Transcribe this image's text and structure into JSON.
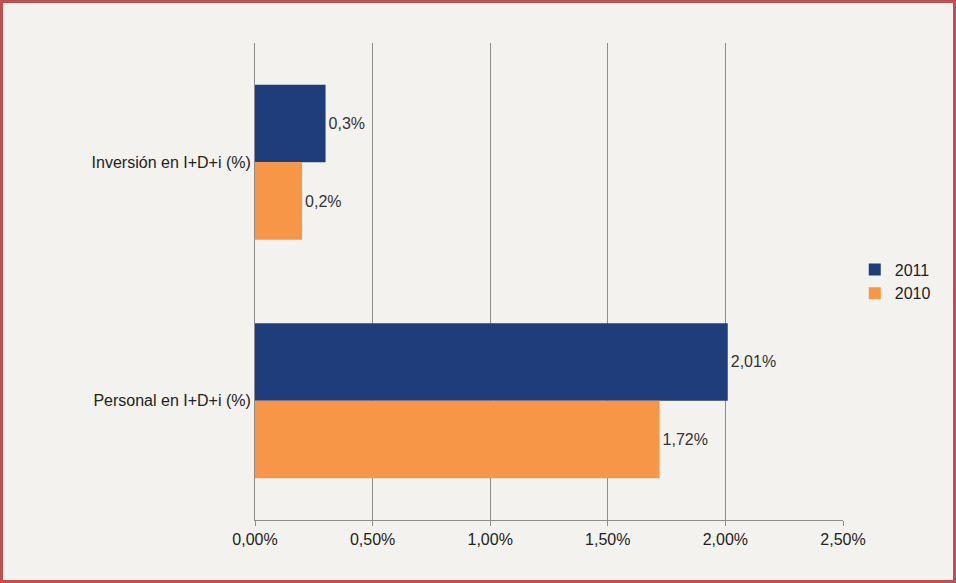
{
  "chart_data": {
    "type": "bar",
    "orientation": "horizontal",
    "categories": [
      "Inversión en I+D+i (%)",
      "Personal en I+D+i (%)"
    ],
    "series": [
      {
        "name": "2011",
        "color": "#1f3d7a",
        "values": [
          0.3,
          2.01
        ],
        "value_labels": [
          "0,3%",
          "2,01%"
        ]
      },
      {
        "name": "2010",
        "color": "#f79646",
        "values": [
          0.2,
          1.72
        ],
        "value_labels": [
          "0,2%",
          "1,72%"
        ]
      }
    ],
    "xlim": [
      0,
      2.5
    ],
    "xticks": [
      {
        "value": 0,
        "label": "0,00%"
      },
      {
        "value": 0.5,
        "label": "0,50%"
      },
      {
        "value": 1,
        "label": "1,00%"
      },
      {
        "value": 1.5,
        "label": "1,50%"
      },
      {
        "value": 2,
        "label": "2,00%"
      },
      {
        "value": 2.5,
        "label": "2,50%"
      }
    ],
    "grid": true,
    "data_labels": true,
    "legend": "right"
  }
}
